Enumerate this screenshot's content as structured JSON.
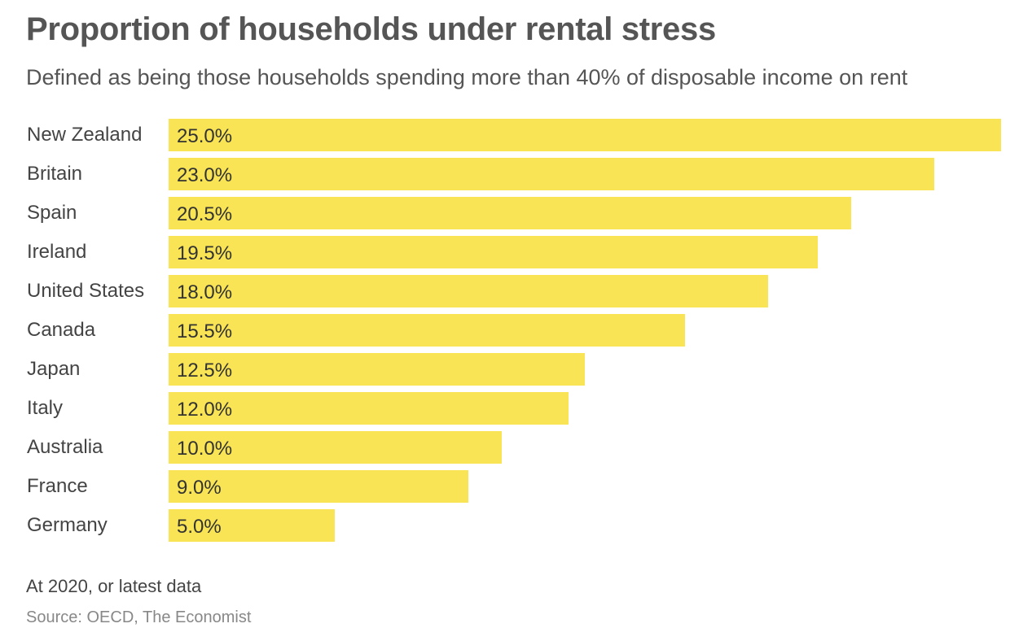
{
  "colors": {
    "bar": "#f8e455",
    "label": "#444444",
    "value": "#333333"
  },
  "chart_data": {
    "type": "bar",
    "orientation": "horizontal",
    "title": "Proportion of households under rental stress",
    "subtitle": "Defined as being those households spending more than 40% of disposable income on rent",
    "categories": [
      "New Zealand",
      "Britain",
      "Spain",
      "Ireland",
      "United States",
      "Canada",
      "Japan",
      "Italy",
      "Australia",
      "France",
      "Germany"
    ],
    "values": [
      25.0,
      23.0,
      20.5,
      19.5,
      18.0,
      15.5,
      12.5,
      12.0,
      10.0,
      9.0,
      5.0
    ],
    "value_labels": [
      "25.0%",
      "23.0%",
      "20.5%",
      "19.5%",
      "18.0%",
      "15.5%",
      "12.5%",
      "12.0%",
      "10.0%",
      "9.0%",
      "5.0%"
    ],
    "xlim": [
      0,
      25
    ],
    "xlabel": "",
    "ylabel": "",
    "grid": false,
    "note": "At 2020, or latest data",
    "source": "Source: OECD, The Economist"
  }
}
